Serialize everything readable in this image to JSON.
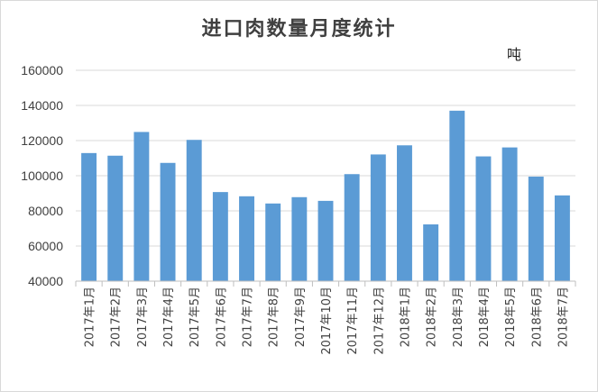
{
  "chart_data": {
    "type": "bar",
    "title": "进口肉数量月度统计",
    "unit_label": "吨",
    "xlabel": "",
    "ylabel": "",
    "ylim": [
      40000,
      160000
    ],
    "yticks": [
      40000,
      60000,
      80000,
      100000,
      120000,
      140000,
      160000
    ],
    "grid": true,
    "legend": "none",
    "bar_color": "#5b9bd5",
    "categories": [
      "2017年1月",
      "2017年2月",
      "2017年3月",
      "2017年4月",
      "2017年5月",
      "2017年6月",
      "2017年7月",
      "2017年8月",
      "2017年9月",
      "2017年10月",
      "2017年11月",
      "2017年12月",
      "2018年1月",
      "2018年2月",
      "2018年3月",
      "2018年4月",
      "2018年5月",
      "2018年6月",
      "2018年7月"
    ],
    "values": [
      112900,
      111400,
      124900,
      107300,
      120400,
      90700,
      88300,
      84200,
      87800,
      85700,
      100900,
      112100,
      117300,
      72300,
      137000,
      111000,
      116100,
      99500,
      88800
    ]
  }
}
